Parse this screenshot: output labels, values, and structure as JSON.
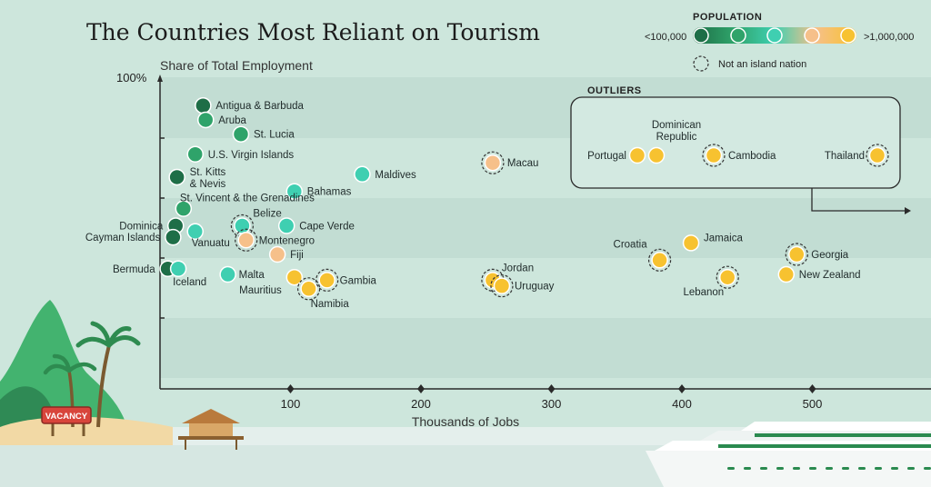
{
  "colors": {
    "pop_lt_100k": "#1e6e47",
    "pop_2": "#2fa36a",
    "pop_3": "#3fcfb1",
    "pop_4": "#f6c08a",
    "pop_gt_1m": "#f7c230"
  },
  "legend": {
    "heading": "POPULATION",
    "low_label": "<100,000",
    "high_label": ">1,000,000",
    "not_island_label": "Not an island nation"
  },
  "outliers": {
    "heading": "OUTLIERS",
    "items": [
      {
        "label": "Portugal",
        "pop": 4,
        "island": true
      },
      {
        "label": "Dominican Republic",
        "pop": 4,
        "island": true
      },
      {
        "label": "Cambodia",
        "pop": 4,
        "island": false
      },
      {
        "label": "Thailand",
        "pop": 4,
        "island": false
      }
    ]
  },
  "decor": {
    "vacancy_sign": "VACANCY"
  },
  "chart_data": {
    "type": "scatter",
    "title": "The Countries Most Reliant on Tourism",
    "xlabel": "Thousands of Jobs",
    "ylabel": "Share of Total Employment",
    "xlim": [
      0,
      560
    ],
    "xticks": [
      100,
      200,
      300,
      400,
      500
    ],
    "ytick_label": "100%",
    "grid": false,
    "legend_position": "top-right",
    "points": [
      {
        "label": "Antigua & Barbuda",
        "x": 33,
        "y": 92,
        "pop": 0,
        "island": true
      },
      {
        "label": "Aruba",
        "x": 35,
        "y": 87,
        "pop": 1,
        "island": true
      },
      {
        "label": "St. Lucia",
        "x": 62,
        "y": 82,
        "pop": 1,
        "island": true
      },
      {
        "label": "U.S. Virgin Islands",
        "x": 27,
        "y": 75,
        "pop": 1,
        "island": true
      },
      {
        "label": "St. Kitts & Nevis",
        "x": 13,
        "y": 67,
        "pop": 0,
        "island": true
      },
      {
        "label": "Maldives",
        "x": 155,
        "y": 68,
        "pop": 2,
        "island": true
      },
      {
        "label": "Macau",
        "x": 255,
        "y": 72,
        "pop": 3,
        "island": false
      },
      {
        "label": "Bahamas",
        "x": 103,
        "y": 62,
        "pop": 2,
        "island": true
      },
      {
        "label": "St. Vincent & the Grenadines",
        "x": 18,
        "y": 56,
        "pop": 1,
        "island": true
      },
      {
        "label": "Dominica",
        "x": 12,
        "y": 50,
        "pop": 0,
        "island": true
      },
      {
        "label": "Belize",
        "x": 63,
        "y": 50,
        "pop": 2,
        "island": false
      },
      {
        "label": "Cape Verde",
        "x": 97,
        "y": 50,
        "pop": 2,
        "island": true
      },
      {
        "label": "Vanuatu",
        "x": 27,
        "y": 48,
        "pop": 2,
        "island": true
      },
      {
        "label": "Cayman Islands",
        "x": 10,
        "y": 46,
        "pop": 0,
        "island": true
      },
      {
        "label": "Montenegro",
        "x": 66,
        "y": 45,
        "pop": 3,
        "island": false
      },
      {
        "label": "Fiji",
        "x": 90,
        "y": 40,
        "pop": 3,
        "island": true
      },
      {
        "label": "Bermuda",
        "x": 6,
        "y": 35,
        "pop": 0,
        "island": true
      },
      {
        "label": "Iceland",
        "x": 14,
        "y": 35,
        "pop": 2,
        "island": true
      },
      {
        "label": "Malta",
        "x": 52,
        "y": 33,
        "pop": 2,
        "island": true
      },
      {
        "label": "Mauritius",
        "x": 103,
        "y": 32,
        "pop": 4,
        "island": true
      },
      {
        "label": "Gambia",
        "x": 128,
        "y": 31,
        "pop": 4,
        "island": false
      },
      {
        "label": "Namibia",
        "x": 114,
        "y": 28,
        "pop": 4,
        "island": false
      },
      {
        "label": "Jordan",
        "x": 255,
        "y": 31,
        "pop": 4,
        "island": false
      },
      {
        "label": "Uruguay",
        "x": 262,
        "y": 29,
        "pop": 4,
        "island": false
      },
      {
        "label": "Croatia",
        "x": 383,
        "y": 38,
        "pop": 4,
        "island": false
      },
      {
        "label": "Jamaica",
        "x": 407,
        "y": 44,
        "pop": 4,
        "island": true
      },
      {
        "label": "Georgia",
        "x": 488,
        "y": 40,
        "pop": 4,
        "island": false
      },
      {
        "label": "New Zealand",
        "x": 480,
        "y": 33,
        "pop": 4,
        "island": true
      },
      {
        "label": "Lebanon",
        "x": 435,
        "y": 32,
        "pop": 4,
        "island": false
      }
    ]
  }
}
